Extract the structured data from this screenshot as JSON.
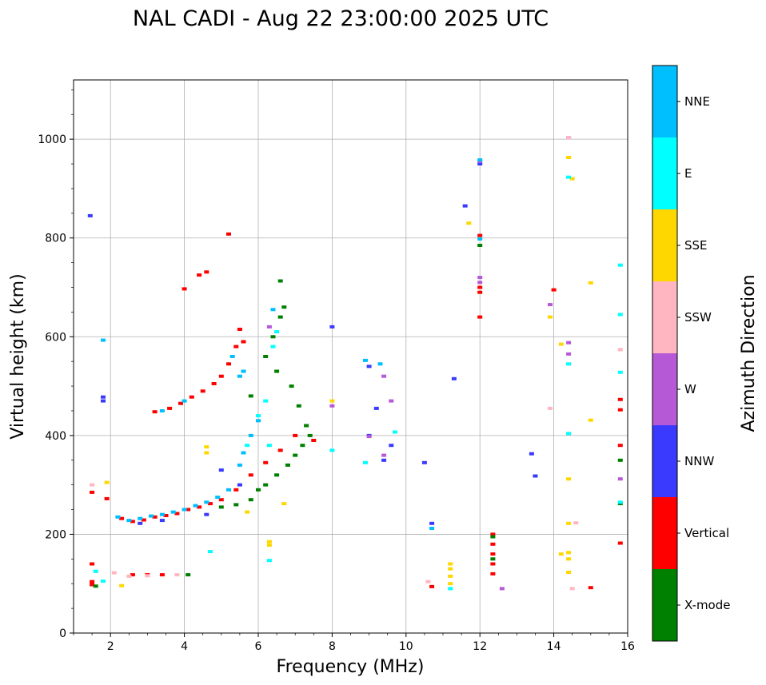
{
  "chart_data": {
    "type": "scatter",
    "title": "NAL CADI - Aug 22 23:00:00 2025 UTC",
    "xlabel": "Frequency (MHz)",
    "ylabel": "Virtual height (km)",
    "xlim": [
      1,
      16
    ],
    "ylim": [
      0,
      1120
    ],
    "xticks": [
      2,
      4,
      6,
      8,
      10,
      12,
      14,
      16
    ],
    "yticks": [
      0,
      200,
      400,
      600,
      800,
      1000
    ],
    "grid": true,
    "colorbar": {
      "label": "Azimuth Direction",
      "categories": [
        {
          "name": "X-mode",
          "color": "#008000"
        },
        {
          "name": "Vertical",
          "color": "#ff0000"
        },
        {
          "name": "NNW",
          "color": "#3a3aff"
        },
        {
          "name": "W",
          "color": "#b659d6"
        },
        {
          "name": "SSW",
          "color": "#ffb6c1"
        },
        {
          "name": "SSE",
          "color": "#ffd700"
        },
        {
          "name": "E",
          "color": "#00ffff"
        },
        {
          "name": "NNE",
          "color": "#00bfff"
        }
      ]
    },
    "series": [
      {
        "name": "Vertical",
        "points": [
          [
            1.5,
            104
          ],
          [
            1.5,
            98
          ],
          [
            1.5,
            140
          ],
          [
            1.5,
            285
          ],
          [
            1.9,
            272
          ],
          [
            2.3,
            232
          ],
          [
            2.6,
            226
          ],
          [
            2.9,
            229
          ],
          [
            3.2,
            235
          ],
          [
            3.5,
            238
          ],
          [
            3.8,
            242
          ],
          [
            4.1,
            250
          ],
          [
            4.4,
            255
          ],
          [
            4.7,
            262
          ],
          [
            5.0,
            270
          ],
          [
            5.4,
            290
          ],
          [
            5.8,
            320
          ],
          [
            6.2,
            345
          ],
          [
            6.6,
            370
          ],
          [
            7.0,
            400
          ],
          [
            7.5,
            390
          ],
          [
            3.2,
            448
          ],
          [
            3.6,
            455
          ],
          [
            3.9,
            465
          ],
          [
            4.2,
            478
          ],
          [
            4.5,
            490
          ],
          [
            4.8,
            505
          ],
          [
            5.0,
            520
          ],
          [
            5.2,
            545
          ],
          [
            5.4,
            580
          ],
          [
            5.5,
            615
          ],
          [
            5.6,
            590
          ],
          [
            5.2,
            808
          ],
          [
            4.4,
            725
          ],
          [
            4.0,
            697
          ],
          [
            4.6,
            731
          ],
          [
            12.0,
            640
          ],
          [
            12.0,
            690
          ],
          [
            12.0,
            700
          ],
          [
            12.0,
            805
          ],
          [
            12.35,
            120
          ],
          [
            12.35,
            140
          ],
          [
            12.35,
            160
          ],
          [
            12.35,
            180
          ],
          [
            12.35,
            200
          ],
          [
            14.0,
            695
          ],
          [
            15.0,
            92
          ],
          [
            15.8,
            182
          ],
          [
            15.8,
            380
          ],
          [
            15.8,
            452
          ],
          [
            15.8,
            473
          ],
          [
            10.7,
            94
          ],
          [
            3.0,
            118
          ],
          [
            3.4,
            118
          ],
          [
            2.6,
            118
          ]
        ]
      },
      {
        "name": "X-mode",
        "points": [
          [
            1.6,
            95
          ],
          [
            5.0,
            255
          ],
          [
            5.4,
            260
          ],
          [
            5.8,
            270
          ],
          [
            6.0,
            290
          ],
          [
            6.2,
            300
          ],
          [
            6.5,
            320
          ],
          [
            6.8,
            340
          ],
          [
            7.0,
            360
          ],
          [
            7.2,
            380
          ],
          [
            7.4,
            400
          ],
          [
            6.2,
            560
          ],
          [
            6.4,
            600
          ],
          [
            6.6,
            640
          ],
          [
            6.7,
            660
          ],
          [
            6.6,
            713
          ],
          [
            5.8,
            480
          ],
          [
            6.5,
            530
          ],
          [
            6.9,
            500
          ],
          [
            7.1,
            460
          ],
          [
            7.3,
            420
          ],
          [
            4.1,
            118
          ],
          [
            12.0,
            785
          ],
          [
            12.35,
            195
          ],
          [
            15.8,
            350
          ],
          [
            15.8,
            262
          ],
          [
            12.35,
            150
          ]
        ]
      },
      {
        "name": "NNW",
        "points": [
          [
            1.45,
            845
          ],
          [
            1.8,
            470
          ],
          [
            1.8,
            478
          ],
          [
            2.8,
            222
          ],
          [
            3.4,
            228
          ],
          [
            9.0,
            540
          ],
          [
            9.2,
            455
          ],
          [
            9.0,
            400
          ],
          [
            9.4,
            350
          ],
          [
            9.6,
            380
          ],
          [
            10.5,
            345
          ],
          [
            10.7,
            222
          ],
          [
            11.3,
            515
          ],
          [
            11.6,
            865
          ],
          [
            13.4,
            363
          ],
          [
            13.5,
            318
          ],
          [
            12.0,
            950
          ],
          [
            5.5,
            300
          ],
          [
            5.0,
            330
          ],
          [
            4.6,
            240
          ],
          [
            8.0,
            620
          ]
        ]
      },
      {
        "name": "W",
        "points": [
          [
            9.0,
            398
          ],
          [
            9.4,
            360
          ],
          [
            9.4,
            520
          ],
          [
            9.6,
            470
          ],
          [
            12.0,
            720
          ],
          [
            12.0,
            710
          ],
          [
            12.6,
            90
          ],
          [
            13.9,
            665
          ],
          [
            14.4,
            588
          ],
          [
            14.4,
            565
          ],
          [
            14.4,
            1003
          ],
          [
            15.8,
            312
          ],
          [
            12.0,
            955
          ],
          [
            6.3,
            620
          ],
          [
            8.0,
            460
          ]
        ]
      },
      {
        "name": "SSW",
        "points": [
          [
            1.5,
            300
          ],
          [
            2.1,
            122
          ],
          [
            2.5,
            115
          ],
          [
            3.0,
            116
          ],
          [
            3.8,
            118
          ],
          [
            13.9,
            455
          ],
          [
            14.5,
            90
          ],
          [
            15.8,
            574
          ],
          [
            10.6,
            104
          ],
          [
            14.6,
            223
          ],
          [
            14.4,
            1003
          ]
        ]
      },
      {
        "name": "SSE",
        "points": [
          [
            1.9,
            305
          ],
          [
            2.3,
            96
          ],
          [
            4.6,
            377
          ],
          [
            4.6,
            365
          ],
          [
            6.3,
            185
          ],
          [
            6.3,
            178
          ],
          [
            6.7,
            262
          ],
          [
            11.2,
            100
          ],
          [
            11.2,
            115
          ],
          [
            11.2,
            130
          ],
          [
            11.2,
            140
          ],
          [
            11.7,
            830
          ],
          [
            13.9,
            640
          ],
          [
            14.2,
            585
          ],
          [
            14.2,
            160
          ],
          [
            14.4,
            312
          ],
          [
            14.4,
            222
          ],
          [
            14.4,
            163
          ],
          [
            14.4,
            150
          ],
          [
            14.4,
            123
          ],
          [
            14.4,
            963
          ],
          [
            14.5,
            920
          ],
          [
            15.0,
            709
          ],
          [
            15.0,
            431
          ],
          [
            8.0,
            470
          ],
          [
            5.7,
            245
          ]
        ]
      },
      {
        "name": "E",
        "points": [
          [
            1.6,
            125
          ],
          [
            1.8,
            105
          ],
          [
            4.7,
            165
          ],
          [
            6.3,
            147
          ],
          [
            6.3,
            380
          ],
          [
            6.4,
            580
          ],
          [
            6.5,
            610
          ],
          [
            8.0,
            370
          ],
          [
            8.9,
            345
          ],
          [
            9.7,
            407
          ],
          [
            11.2,
            90
          ],
          [
            14.4,
            923
          ],
          [
            14.4,
            545
          ],
          [
            14.4,
            404
          ],
          [
            15.8,
            745
          ],
          [
            15.8,
            645
          ],
          [
            15.8,
            528
          ],
          [
            15.8,
            265
          ],
          [
            5.7,
            380
          ],
          [
            6.0,
            440
          ],
          [
            6.2,
            470
          ]
        ]
      },
      {
        "name": "NNE",
        "points": [
          [
            1.8,
            593
          ],
          [
            2.2,
            235
          ],
          [
            2.5,
            228
          ],
          [
            2.8,
            232
          ],
          [
            3.1,
            237
          ],
          [
            3.4,
            240
          ],
          [
            3.7,
            245
          ],
          [
            4.0,
            250
          ],
          [
            4.3,
            258
          ],
          [
            4.6,
            265
          ],
          [
            4.9,
            275
          ],
          [
            5.2,
            290
          ],
          [
            5.5,
            340
          ],
          [
            5.6,
            365
          ],
          [
            5.8,
            400
          ],
          [
            5.5,
            520
          ],
          [
            5.6,
            530
          ],
          [
            3.4,
            450
          ],
          [
            4.0,
            470
          ],
          [
            6.4,
            655
          ],
          [
            8.9,
            552
          ],
          [
            9.3,
            545
          ],
          [
            10.7,
            212
          ],
          [
            12.0,
            958
          ],
          [
            12.0,
            798
          ],
          [
            6.0,
            430
          ],
          [
            5.3,
            560
          ]
        ]
      }
    ]
  }
}
